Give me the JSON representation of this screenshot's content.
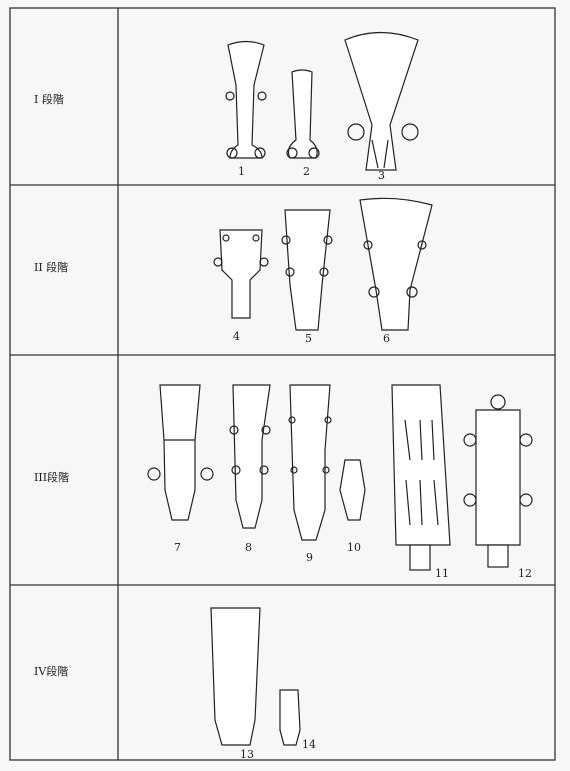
{
  "rows": [
    {
      "label": "I 段階",
      "figures": [
        "1",
        "2",
        "3"
      ]
    },
    {
      "label": "II 段階",
      "figures": [
        "4",
        "5",
        "6"
      ]
    },
    {
      "label": "III段階",
      "figures": [
        "7",
        "8",
        "9",
        "10",
        "11",
        "12"
      ]
    },
    {
      "label": "IV段階",
      "figures": [
        "13",
        "14"
      ]
    }
  ]
}
